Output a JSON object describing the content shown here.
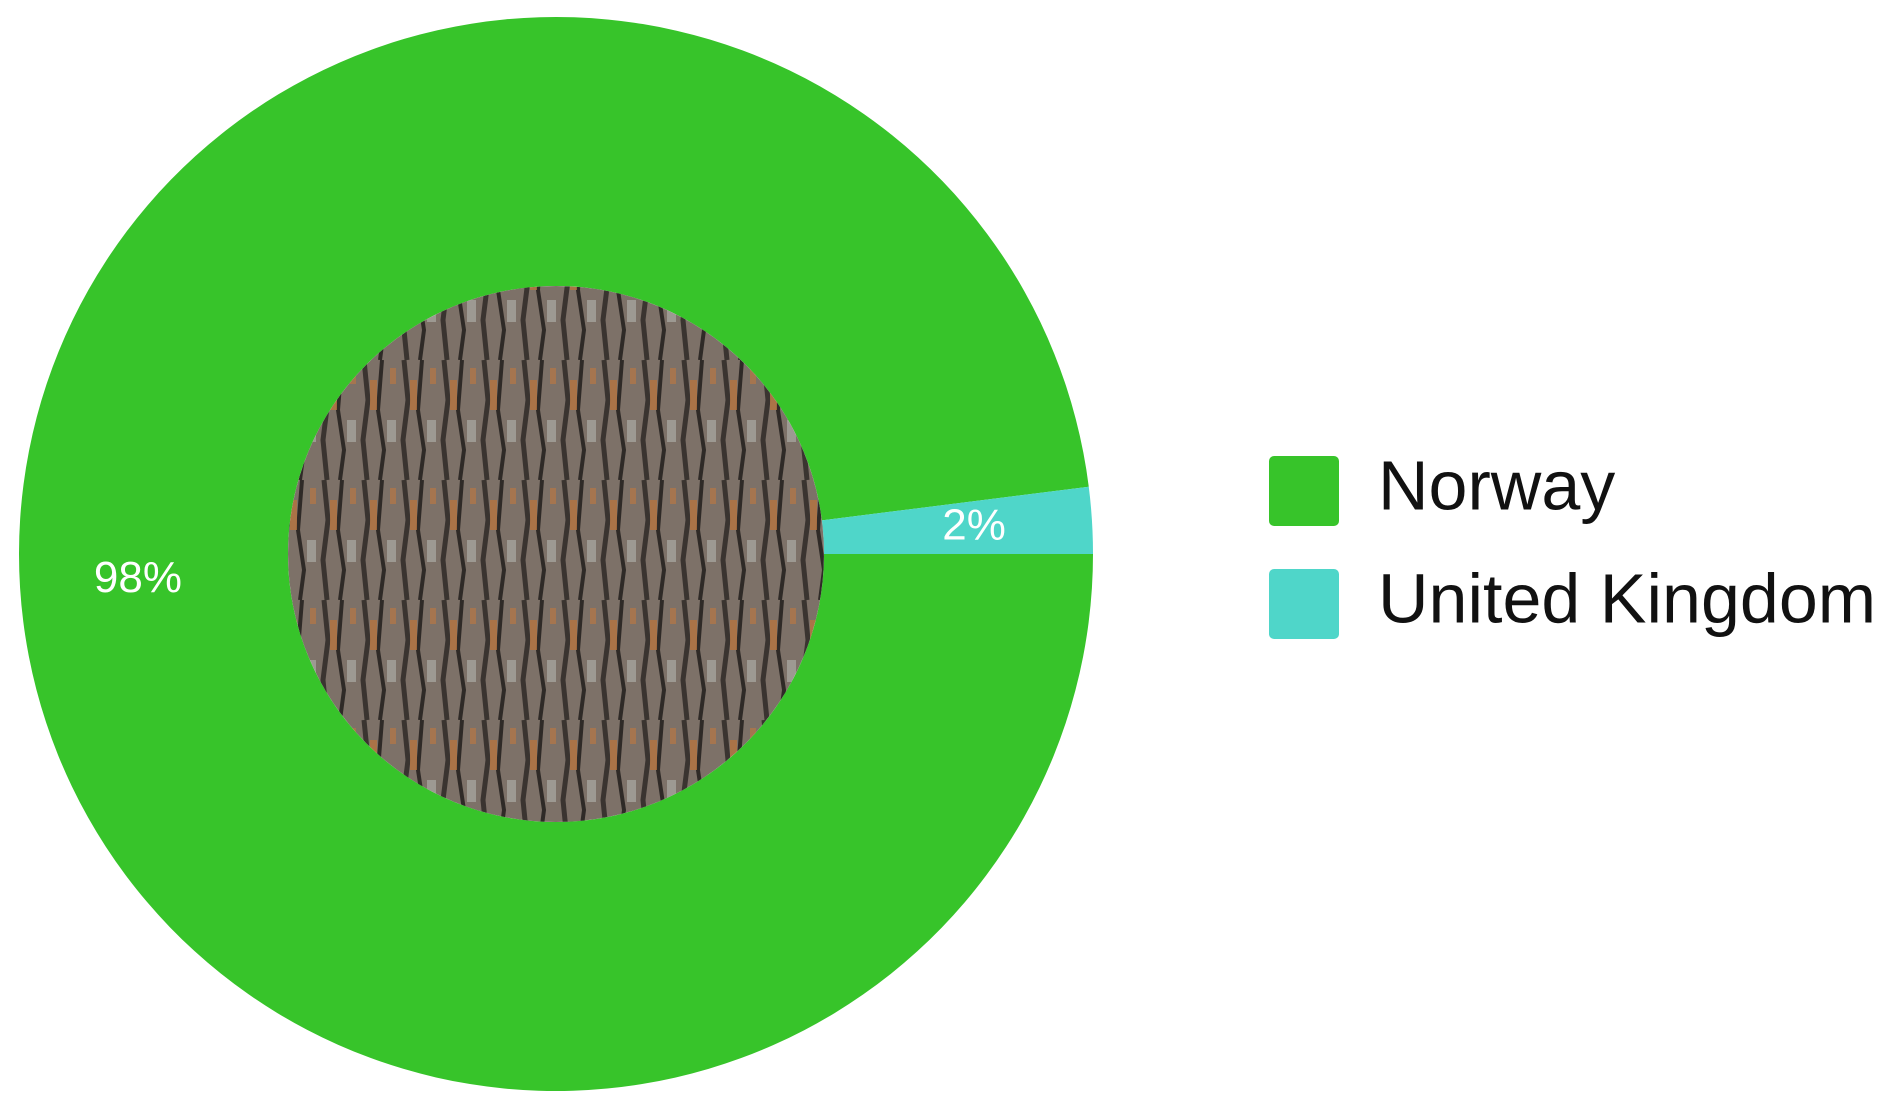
{
  "chart_data": {
    "type": "donut",
    "categories": [
      "Norway",
      "United Kingdom"
    ],
    "values": [
      98,
      2
    ],
    "value_labels": [
      "98%",
      "2%"
    ],
    "colors": [
      "#37c42a",
      "#4fd6c9"
    ],
    "legend": "right"
  }
}
